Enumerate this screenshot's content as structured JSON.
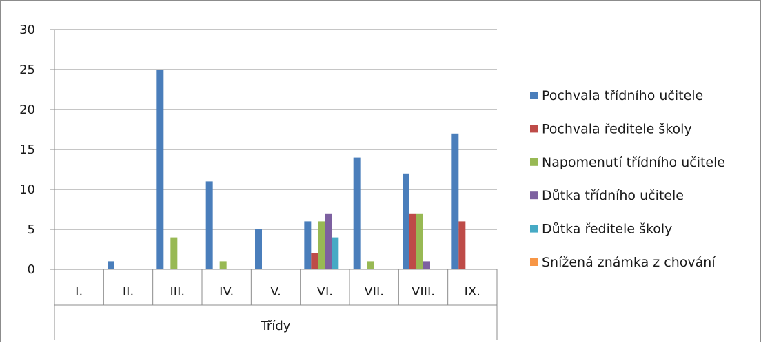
{
  "chart_data": {
    "type": "bar",
    "title": "",
    "xlabel": "Třídy",
    "ylabel": "",
    "ylim": [
      0,
      30
    ],
    "yticks": [
      0,
      5,
      10,
      15,
      20,
      25,
      30
    ],
    "grid": true,
    "legend_position": "right",
    "categories": [
      "I.",
      "II.",
      "III.",
      "IV.",
      "V.",
      "VI.",
      "VII.",
      "VIII.",
      "IX."
    ],
    "series": [
      {
        "name": "Pochvala třídního učitele",
        "color": "#4a7ebb",
        "values": [
          0,
          1,
          25,
          11,
          5,
          6,
          14,
          12,
          17
        ]
      },
      {
        "name": "Pochvala ředitele školy",
        "color": "#be4b48",
        "values": [
          0,
          0,
          0,
          0,
          0,
          2,
          0,
          7,
          6
        ]
      },
      {
        "name": "Napomenutí třídního učitele",
        "color": "#98b954",
        "values": [
          0,
          0,
          4,
          1,
          0,
          6,
          1,
          7,
          0
        ]
      },
      {
        "name": "Důtka třídního učitele",
        "color": "#7d60a0",
        "values": [
          0,
          0,
          0,
          0,
          0,
          7,
          0,
          1,
          0
        ]
      },
      {
        "name": "Důtka ředitele školy",
        "color": "#46aac5",
        "values": [
          0,
          0,
          0,
          0,
          0,
          4,
          0,
          0,
          0
        ]
      },
      {
        "name": "Snížená známka z chování",
        "color": "#f79646",
        "values": [
          0,
          0,
          0,
          0,
          0,
          0,
          0,
          0,
          0
        ]
      }
    ]
  }
}
